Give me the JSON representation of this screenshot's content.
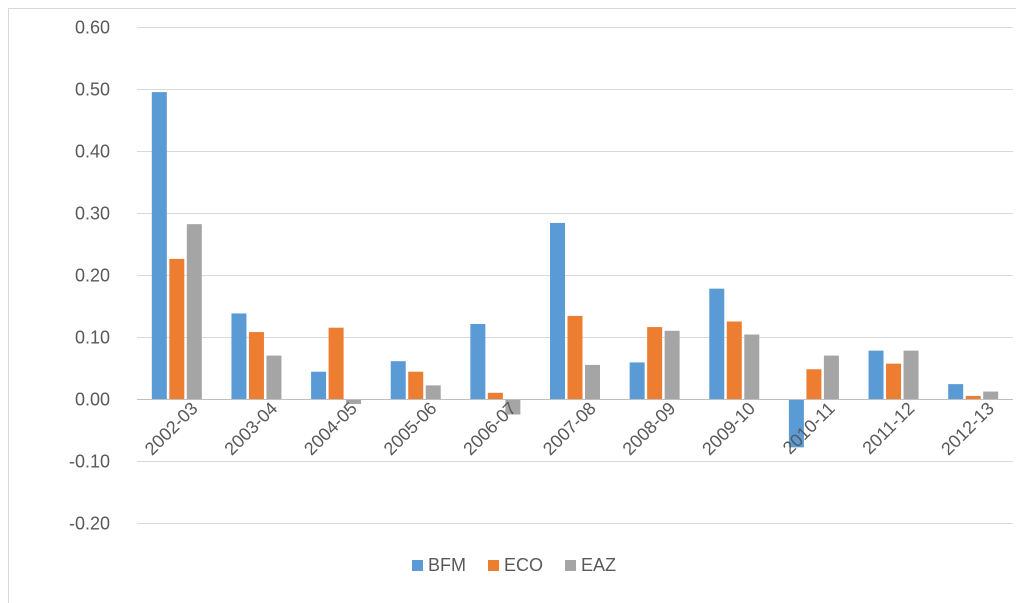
{
  "chart_data": {
    "type": "bar",
    "title": "",
    "xlabel": "",
    "ylabel": "",
    "categories": [
      "2002-03",
      "2003-04",
      "2004-05",
      "2005-06",
      "2006-07",
      "2007-08",
      "2008-09",
      "2009-10",
      "2010-11",
      "2011-12",
      "2012-13"
    ],
    "series": [
      {
        "name": "BFM",
        "color": "#5b9bd5",
        "values": [
          0.495,
          0.138,
          0.044,
          0.061,
          0.121,
          0.284,
          0.059,
          0.178,
          -0.078,
          0.078,
          0.024
        ]
      },
      {
        "name": "ECO",
        "color": "#ed7d31",
        "values": [
          0.226,
          0.108,
          0.115,
          0.044,
          0.01,
          0.134,
          0.116,
          0.125,
          0.048,
          0.057,
          0.005
        ]
      },
      {
        "name": "EAZ",
        "color": "#a5a5a5",
        "values": [
          0.282,
          0.07,
          -0.008,
          0.022,
          -0.025,
          0.055,
          0.11,
          0.104,
          0.07,
          0.078,
          0.012
        ]
      }
    ],
    "ylim": [
      -0.2,
      0.6
    ],
    "yticks": [
      -0.2,
      -0.1,
      0.0,
      0.1,
      0.2,
      0.3,
      0.4,
      0.5,
      0.6
    ],
    "ytick_labels": [
      "-0.20",
      "-0.10",
      "0.00",
      "0.10",
      "0.20",
      "0.30",
      "0.40",
      "0.50",
      "0.60"
    ],
    "grid": true,
    "legend_position": "bottom",
    "gridline_color": "#d9d9d9",
    "axis_color": "#bfbfbf",
    "label_color": "#595959"
  }
}
